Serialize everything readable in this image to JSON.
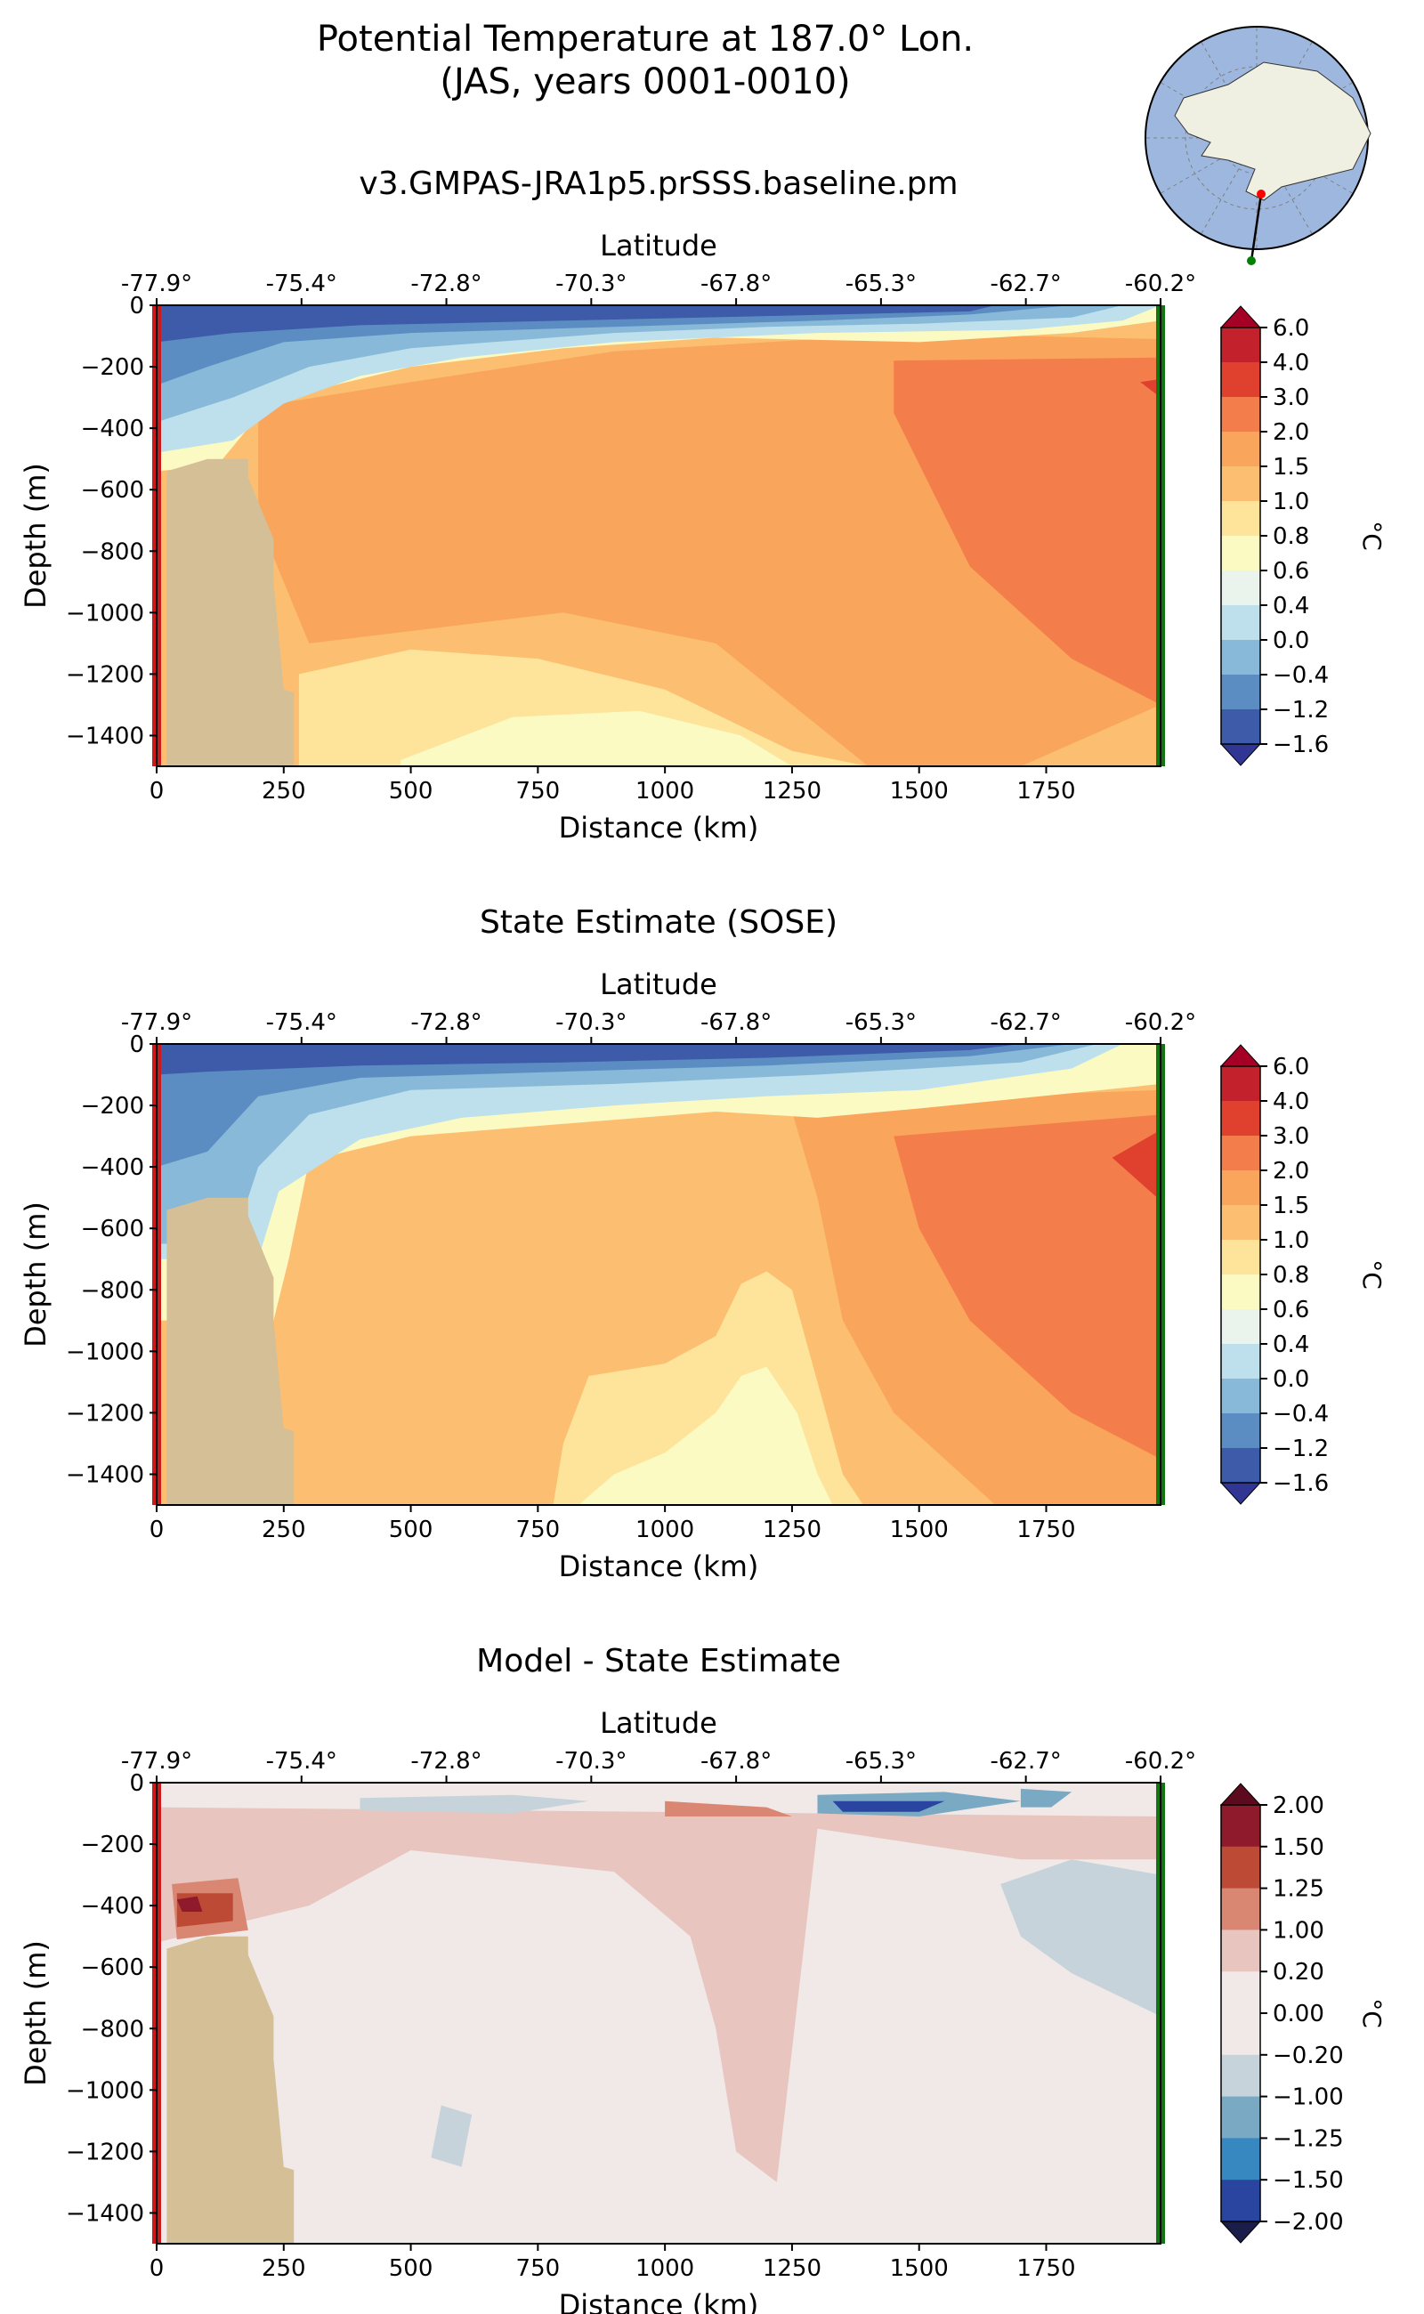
{
  "figure": {
    "title_line1": "Potential Temperature at 187.0° Lon.",
    "title_line2": "(JAS, years 0001-0010)",
    "map_inset": {
      "content": "south polar stereographic map of Antarctica with transect line",
      "start_marker_color": "#ff0000",
      "end_marker_color": "#008000",
      "ocean_color": "#9db7de",
      "land_color": "#efefe2"
    }
  },
  "chart_data": [
    {
      "type": "contour",
      "panel_title": "v3.GMPAS-JRA1p5.prSSS.baseline.pm",
      "xlabel": "Distance (km)",
      "ylabel": "Depth (m)",
      "top_xlabel": "Latitude",
      "xlim": [
        0,
        1975
      ],
      "ylim": [
        -1500,
        0
      ],
      "x_ticks": [
        0,
        250,
        500,
        750,
        1000,
        1250,
        1500,
        1750
      ],
      "y_ticks": [
        0,
        -200,
        -400,
        -600,
        -800,
        -1000,
        -1200,
        -1400
      ],
      "latitude_ticks": [
        "-77.9°",
        "-75.4°",
        "-72.8°",
        "-70.3°",
        "-67.8°",
        "-65.3°",
        "-62.7°",
        "-60.2°"
      ],
      "latitude_tick_distances": [
        0,
        285,
        570,
        855,
        1140,
        1425,
        1710,
        1975
      ],
      "colorbar": {
        "label": "°C",
        "ticks": [
          "6.0",
          "4.0",
          "3.0",
          "2.0",
          "1.5",
          "1.0",
          "0.8",
          "0.6",
          "0.4",
          "0.0",
          "−0.4",
          "−1.2",
          "−1.6"
        ],
        "colors": [
          "#c3212c",
          "#e0412f",
          "#f47e4b",
          "#f9a55b",
          "#fcbf71",
          "#fde49a",
          "#fbfac3",
          "#eaf4ec",
          "#bde0ec",
          "#88b9d8",
          "#5b8dc3",
          "#3d5ba8"
        ],
        "extend_high": "#a50026",
        "extend_low": "#313695"
      },
      "field_levels_c": [
        {
          "contour_c": 2.0,
          "region": "warm core 1400-1975 km, depth 200-1300 m"
        },
        {
          "contour_c": 1.5,
          "region": "band below surface layer 250-1750 km"
        },
        {
          "contour_c": 1.0,
          "region": "deep water 250-1500 km"
        },
        {
          "contour_c": 0.8,
          "region": "deep core 750-1250 km below 1300 m"
        },
        {
          "contour_c": -1.6,
          "region": "surface layer 0-1900 km, 0-100 m"
        }
      ],
      "section_boundaries": {
        "start_color": "#cc1a1a",
        "end_color": "#127512",
        "bathymetry_color": "#d5bf96"
      }
    },
    {
      "type": "contour",
      "panel_title": "State Estimate (SOSE)",
      "xlabel": "Distance (km)",
      "ylabel": "Depth (m)",
      "top_xlabel": "Latitude",
      "xlim": [
        0,
        1975
      ],
      "ylim": [
        -1500,
        0
      ],
      "x_ticks": [
        0,
        250,
        500,
        750,
        1000,
        1250,
        1500,
        1750
      ],
      "y_ticks": [
        0,
        -200,
        -400,
        -600,
        -800,
        -1000,
        -1200,
        -1400
      ],
      "latitude_ticks": [
        "-77.9°",
        "-75.4°",
        "-72.8°",
        "-70.3°",
        "-67.8°",
        "-65.3°",
        "-62.7°",
        "-60.2°"
      ],
      "latitude_tick_distances": [
        0,
        285,
        570,
        855,
        1140,
        1425,
        1710,
        1975
      ],
      "colorbar": {
        "label": "°C",
        "ticks": [
          "6.0",
          "4.0",
          "3.0",
          "2.0",
          "1.5",
          "1.0",
          "0.8",
          "0.6",
          "0.4",
          "0.0",
          "−0.4",
          "−1.2",
          "−1.6"
        ],
        "colors": [
          "#c3212c",
          "#e0412f",
          "#f47e4b",
          "#f9a55b",
          "#fcbf71",
          "#fde49a",
          "#fbfac3",
          "#eaf4ec",
          "#bde0ec",
          "#88b9d8",
          "#5b8dc3",
          "#3d5ba8"
        ],
        "extend_high": "#a50026",
        "extend_low": "#313695"
      },
      "field_levels_c": [
        {
          "contour_c": 3.0,
          "region": "near 1975 km, 300-500 m"
        },
        {
          "contour_c": 2.0,
          "region": "warm core 1450-1975 km"
        },
        {
          "contour_c": 1.0,
          "region": "deep water 250-1400 km"
        },
        {
          "contour_c": 0.8,
          "region": "plume 750-1300 km rising to 700 m"
        },
        {
          "contour_c": -1.6,
          "region": "surface layer 0-1900 km"
        }
      ],
      "section_boundaries": {
        "start_color": "#cc1a1a",
        "end_color": "#127512",
        "bathymetry_color": "#d5bf96"
      }
    },
    {
      "type": "contour",
      "panel_title": "Model - State Estimate",
      "xlabel": "Distance (km)",
      "ylabel": "Depth (m)",
      "top_xlabel": "Latitude",
      "xlim": [
        0,
        1975
      ],
      "ylim": [
        -1500,
        0
      ],
      "x_ticks": [
        0,
        250,
        500,
        750,
        1000,
        1250,
        1500,
        1750
      ],
      "y_ticks": [
        0,
        -200,
        -400,
        -600,
        -800,
        -1000,
        -1200,
        -1400
      ],
      "latitude_ticks": [
        "-77.9°",
        "-75.4°",
        "-72.8°",
        "-70.3°",
        "-67.8°",
        "-65.3°",
        "-62.7°",
        "-60.2°"
      ],
      "latitude_tick_distances": [
        0,
        285,
        570,
        855,
        1140,
        1425,
        1710,
        1975
      ],
      "colorbar": {
        "label": "°C",
        "ticks": [
          "2.00",
          "1.50",
          "1.25",
          "1.00",
          "0.20",
          "0.00",
          "−0.20",
          "−1.00",
          "−1.25",
          "−1.50",
          "−2.00"
        ],
        "colors": [
          "#8e1a2b",
          "#bd4a35",
          "#d98773",
          "#e8c6bf",
          "#f0e9e8",
          "#f0e9e8",
          "#c7d3da",
          "#79a9c3",
          "#3787c0",
          "#2a45a0"
        ],
        "extend_high": "#5c0a1e",
        "extend_low": "#1a1d4a"
      },
      "field_levels_c": [
        {
          "contour_c": 0.2,
          "region": "upper layer and tongue at 1100-1300 km"
        },
        {
          "contour_c": 1.25,
          "region": "near 60-140 km, 350-500 m"
        },
        {
          "contour_c": -0.2,
          "region": "near 1650-1975 km, 300-800 m"
        },
        {
          "contour_c": -1.5,
          "region": "near 1300-1550 km, 40-120 m"
        }
      ],
      "section_boundaries": {
        "start_color": "#cc1a1a",
        "end_color": "#127512",
        "bathymetry_color": "#d5bf96"
      }
    }
  ]
}
